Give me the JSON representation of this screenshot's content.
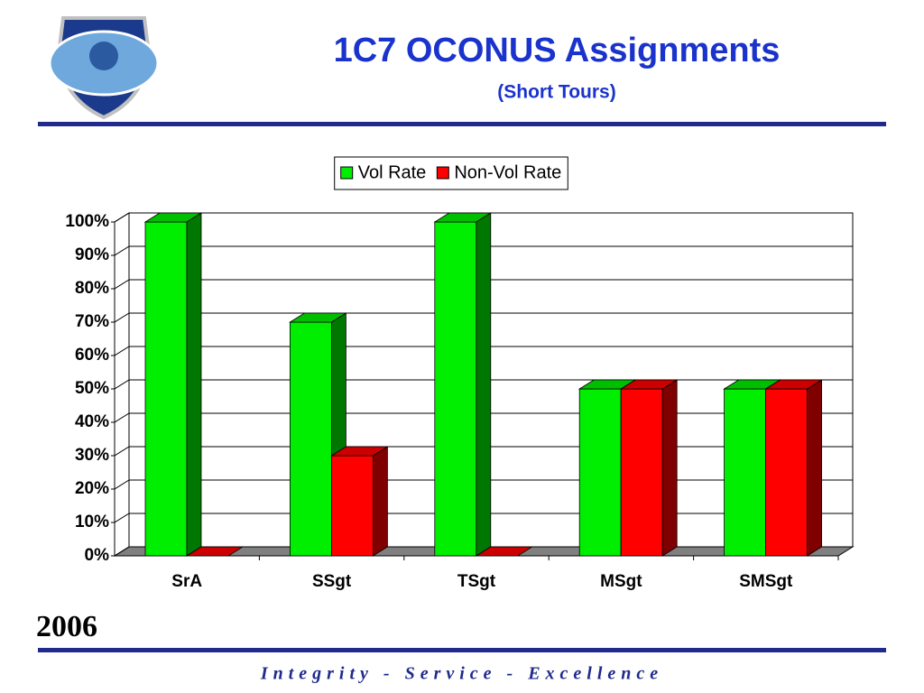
{
  "chart_data": {
    "type": "bar3d",
    "title": "1C7 OCONUS Assignments",
    "subtitle": "(Short Tours)",
    "categories": [
      "SrA",
      "SSgt",
      "TSgt",
      "MSgt",
      "SMSgt"
    ],
    "series": [
      {
        "name": "Vol Rate",
        "color": "#00ee00",
        "values": [
          100,
          70,
          100,
          50,
          50
        ]
      },
      {
        "name": "Non-Vol Rate",
        "color": "#ff0000",
        "values": [
          0,
          30,
          0,
          50,
          50
        ]
      }
    ],
    "ylim": [
      0,
      100
    ],
    "yticks": [
      {
        "value": 0,
        "label": "0%"
      },
      {
        "value": 10,
        "label": "10%"
      },
      {
        "value": 20,
        "label": "20%"
      },
      {
        "value": 30,
        "label": "30%"
      },
      {
        "value": 40,
        "label": "40%"
      },
      {
        "value": 50,
        "label": "50%"
      },
      {
        "value": 60,
        "label": "60%"
      },
      {
        "value": 70,
        "label": "70%"
      },
      {
        "value": 80,
        "label": "80%"
      },
      {
        "value": 90,
        "label": "90%"
      },
      {
        "value": 100,
        "label": "100%"
      }
    ],
    "grid": true,
    "legend": "top"
  },
  "slide": {
    "year": "2006",
    "footer": "Integrity - Service - Excellence"
  }
}
